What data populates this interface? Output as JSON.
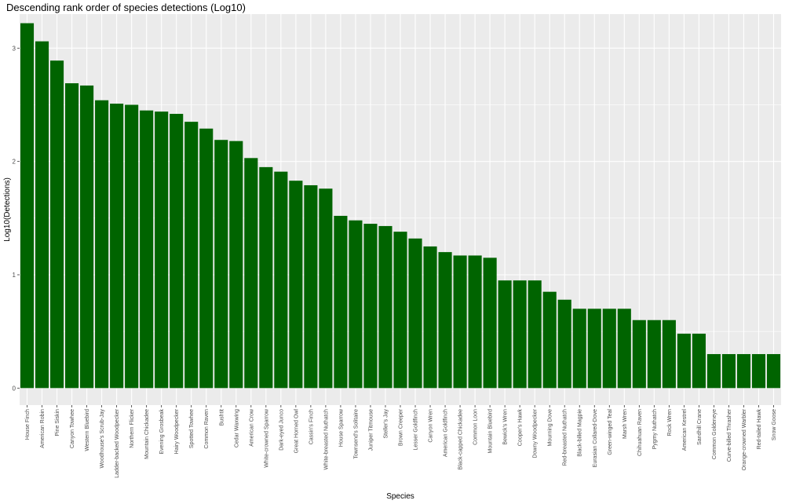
{
  "chart_data": {
    "type": "bar",
    "title": "Descending rank order of species detections (Log10)",
    "xlabel": "Species",
    "ylabel": "Log10(Detections)",
    "ylim": [
      -0.15,
      3.3
    ],
    "yticks": [
      0,
      1,
      2,
      3
    ],
    "grid": true,
    "bar_color": "#006400",
    "panel_color": "#ebebeb",
    "categories": [
      "House Finch",
      "American Robin",
      "Pine Siskin",
      "Canyon Towhee",
      "Western Bluebird",
      "Woodhouse's Scrub-Jay",
      "Ladder-backed Woodpecker",
      "Northern Flicker",
      "Mountain Chickadee",
      "Evening Grosbeak",
      "Hairy Woodpecker",
      "Spotted Towhee",
      "Common Raven",
      "Bushtit",
      "Cedar Waxwing",
      "American Crow",
      "White-crowned Sparrow",
      "Dark-eyed Junco",
      "Great Horned Owl",
      "Cassin's Finch",
      "White-breasted Nuthatch",
      "House Sparrow",
      "Townsend's Solitaire",
      "Juniper Titmouse",
      "Steller's Jay",
      "Brown Creeper",
      "Lesser Goldfinch",
      "Canyon Wren",
      "American Goldfinch",
      "Black-capped Chickadee",
      "Common Loon",
      "Mountain Bluebird",
      "Bewick's Wren",
      "Cooper's Hawk",
      "Downy Woodpecker",
      "Mourning Dove",
      "Red-breasted Nuthatch",
      "Black-billed Magpie",
      "Eurasian Collared-Dove",
      "Green-winged Teal",
      "Marsh Wren",
      "Chihuahuan Raven",
      "Pygmy Nuthatch",
      "Rock Wren",
      "American Kestrel",
      "Sandhill Crane",
      "Common Goldeneye",
      "Curve-billed Thrasher",
      "Orange-crowned Warbler",
      "Red-tailed Hawk",
      "Snow Goose"
    ],
    "values": [
      3.22,
      3.06,
      2.89,
      2.69,
      2.67,
      2.54,
      2.51,
      2.5,
      2.45,
      2.44,
      2.42,
      2.35,
      2.29,
      2.19,
      2.18,
      2.03,
      1.95,
      1.91,
      1.83,
      1.79,
      1.76,
      1.52,
      1.48,
      1.45,
      1.43,
      1.38,
      1.32,
      1.25,
      1.2,
      1.17,
      1.17,
      1.15,
      0.95,
      0.95,
      0.95,
      0.85,
      0.78,
      0.7,
      0.7,
      0.7,
      0.7,
      0.6,
      0.6,
      0.6,
      0.48,
      0.48,
      0.3,
      0.3,
      0.3,
      0.3,
      0.3
    ]
  }
}
